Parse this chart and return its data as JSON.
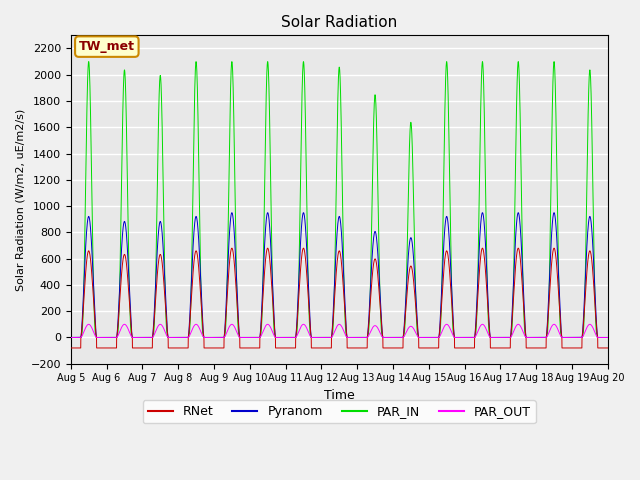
{
  "title": "Solar Radiation",
  "xlabel": "Time",
  "ylabel": "Solar Radiation (W/m2, uE/m2/s)",
  "ylim": [
    -200,
    2300
  ],
  "yticks": [
    -200,
    0,
    200,
    400,
    600,
    800,
    1000,
    1200,
    1400,
    1600,
    1800,
    2000,
    2200
  ],
  "start_day": 5,
  "end_day": 20,
  "n_days": 15,
  "colors": {
    "RNet": "#cc0000",
    "Pyranom": "#0000cc",
    "PAR_IN": "#00dd00",
    "PAR_OUT": "#ff00ff"
  },
  "legend_label": "TW_met",
  "legend_box_color": "#ffffcc",
  "legend_box_edge": "#cc8800",
  "grid_color": "#ffffff",
  "bg_color": "#e8e8e8",
  "peak_PAR_IN": 2100,
  "peak_Pyranom": 950,
  "peak_RNet_day": 680,
  "peak_RNet_night": -80,
  "peak_PAR_OUT": 100,
  "points_per_day": 288,
  "par_in_factors": [
    1.0,
    0.97,
    0.95,
    1.0,
    1.0,
    1.0,
    1.0,
    0.98,
    0.88,
    0.78,
    1.0,
    1.0,
    1.0,
    1.0,
    0.97
  ],
  "pyranom_factors": [
    0.97,
    0.93,
    0.93,
    0.97,
    1.0,
    1.0,
    1.0,
    0.97,
    0.85,
    0.8,
    0.97,
    1.0,
    1.0,
    1.0,
    0.97
  ],
  "rnet_factors": [
    0.97,
    0.93,
    0.93,
    0.97,
    1.0,
    1.0,
    1.0,
    0.97,
    0.88,
    0.8,
    0.97,
    1.0,
    1.0,
    1.0,
    0.97
  ],
  "par_out_factors": [
    1.0,
    1.0,
    1.0,
    1.0,
    1.0,
    1.0,
    1.0,
    1.0,
    0.9,
    0.85,
    1.0,
    1.0,
    1.0,
    1.0,
    1.0
  ]
}
